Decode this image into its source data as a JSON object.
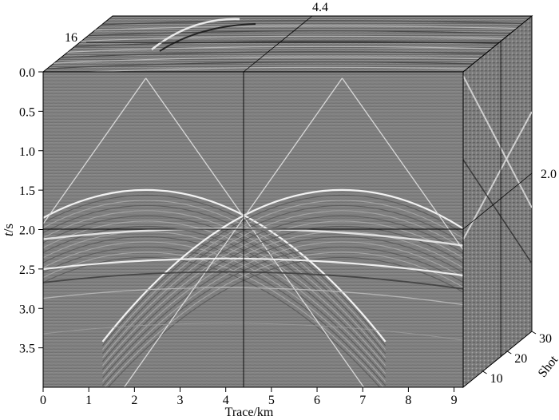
{
  "figure": {
    "y_axis": {
      "label_prefix": "t",
      "label_suffix": "/s",
      "ticks": [
        "0.0",
        "0.5",
        "1.0",
        "1.5",
        "2.0",
        "2.5",
        "3.0",
        "3.5"
      ],
      "range": [
        0,
        4.0
      ]
    },
    "x_axis": {
      "label": "Trace/km",
      "ticks": [
        "0",
        "1",
        "2",
        "3",
        "4",
        "5",
        "6",
        "7",
        "8",
        "9"
      ],
      "range": [
        0,
        9.2
      ]
    },
    "shot_axis": {
      "label": "Shot",
      "ticks": [
        "10",
        "20",
        "30"
      ]
    },
    "slice_labels": {
      "top_trace": "4.4",
      "top_shot": "16",
      "side_time": "2.0"
    },
    "colors": {
      "background": "#7f7f7f",
      "wavefront": "#ffffff",
      "axis": "#000000"
    },
    "slice_positions": {
      "trace_km": 4.4,
      "time_s": 2.0,
      "shot": 16
    }
  }
}
